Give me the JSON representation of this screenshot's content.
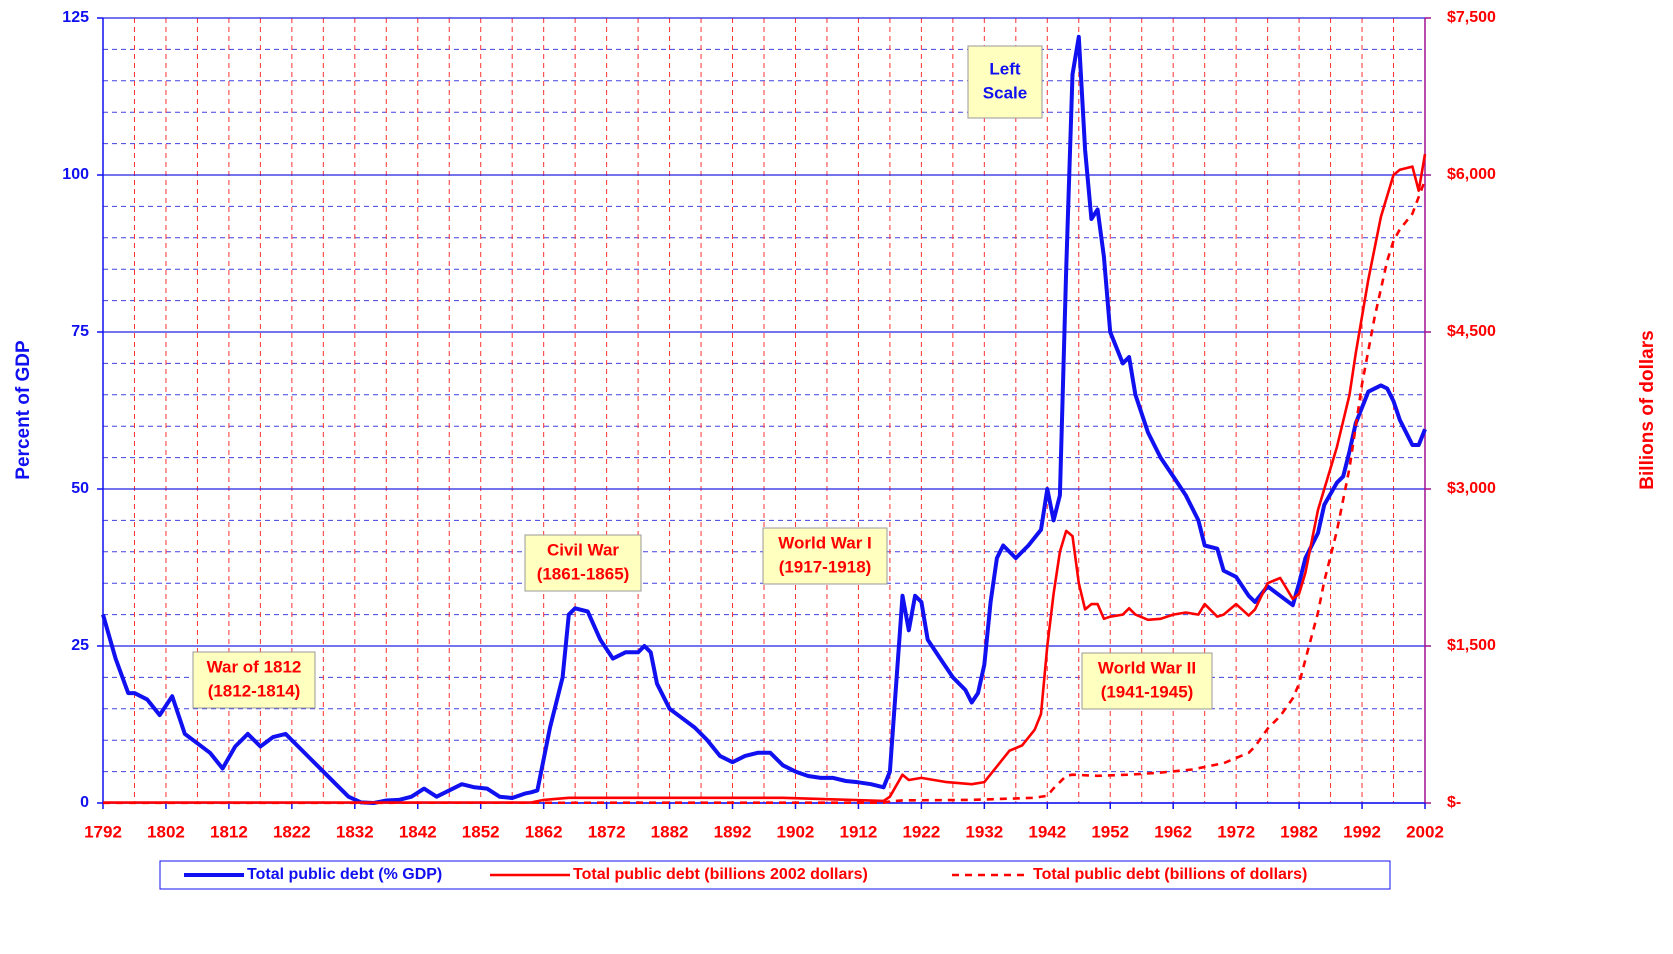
{
  "chart_data": {
    "type": "line",
    "ylabel": "Percent of GDP",
    "y2label": "Billions of dollars",
    "xlim": [
      1792,
      2002
    ],
    "xticks": [
      1792,
      1802,
      1812,
      1822,
      1832,
      1842,
      1852,
      1862,
      1872,
      1882,
      1892,
      1902,
      1912,
      1922,
      1932,
      1942,
      1952,
      1962,
      1972,
      1982,
      1992,
      2002
    ],
    "xminorticks": [
      1797,
      1802,
      1807,
      1812,
      1817,
      1822,
      1827,
      1832,
      1837,
      1842,
      1847,
      1852,
      1857,
      1862,
      1867,
      1872,
      1877,
      1882,
      1887,
      1892,
      1897,
      1902,
      1907,
      1912,
      1917,
      1922,
      1927,
      1932,
      1937,
      1942,
      1947,
      1952,
      1957,
      1962,
      1967,
      1972,
      1977,
      1982,
      1987,
      1992,
      1997
    ],
    "ylim": [
      0,
      125
    ],
    "yticks": [
      0,
      25,
      50,
      75,
      100,
      125
    ],
    "yminorticks": [
      5,
      10,
      15,
      20,
      30,
      35,
      40,
      45,
      55,
      60,
      65,
      70,
      80,
      85,
      90,
      95,
      105,
      110,
      115,
      120
    ],
    "y2lim": [
      0,
      7500
    ],
    "y2ticks": [
      {
        "value": 0,
        "label": "$-"
      },
      {
        "value": 1500,
        "label": "$1,500"
      },
      {
        "value": 3000,
        "label": "$3,000"
      },
      {
        "value": 4500,
        "label": "$4,500"
      },
      {
        "value": 6000,
        "label": "$6,000"
      },
      {
        "value": 7500,
        "label": "$7,500"
      }
    ],
    "grid": true,
    "legend": "bottom",
    "series": [
      {
        "name": "Total public debt (% GDP)",
        "color": "#1010f0",
        "dash": false,
        "x": [
          1792,
          1794,
          1796,
          1797,
          1799,
          1801,
          1803,
          1805,
          1807,
          1809,
          1811,
          1813,
          1815,
          1817,
          1819,
          1821,
          1823,
          1825,
          1827,
          1829,
          1831,
          1833,
          1835,
          1837,
          1839,
          1841,
          1843,
          1845,
          1847,
          1849,
          1851,
          1853,
          1855,
          1857,
          1859,
          1860,
          1861,
          1863,
          1865,
          1866,
          1867,
          1869,
          1871,
          1873,
          1875,
          1877,
          1878,
          1879,
          1880,
          1882,
          1884,
          1886,
          1888,
          1890,
          1892,
          1894,
          1896,
          1898,
          1900,
          1902,
          1904,
          1906,
          1908,
          1910,
          1912,
          1914,
          1916,
          1917,
          1919,
          1920,
          1921,
          1922,
          1923,
          1925,
          1927,
          1929,
          1930,
          1931,
          1932,
          1933,
          1934,
          1935,
          1937,
          1939,
          1941,
          1942,
          1943,
          1944,
          1945,
          1946,
          1947,
          1948,
          1949,
          1950,
          1951,
          1952,
          1954,
          1955,
          1956,
          1958,
          1960,
          1962,
          1964,
          1966,
          1967,
          1969,
          1970,
          1972,
          1974,
          1975,
          1977,
          1979,
          1981,
          1982,
          1983,
          1985,
          1986,
          1988,
          1989,
          1990,
          1991,
          1993,
          1995,
          1996,
          1997,
          1998,
          2000,
          2001,
          2002
        ],
        "values": [
          30,
          23,
          17.5,
          17.5,
          16.5,
          14,
          17,
          11,
          9.5,
          8,
          5.5,
          9,
          11,
          9,
          10.5,
          11,
          9,
          7,
          5,
          3,
          1,
          0.1,
          0,
          0.4,
          0.5,
          1,
          2.3,
          1,
          2,
          3,
          2.5,
          2.3,
          1,
          0.8,
          1.5,
          1.7,
          2,
          12,
          20,
          30,
          31,
          30.5,
          26,
          23,
          24,
          24,
          25,
          24,
          19,
          15,
          13.5,
          12,
          10,
          7.5,
          6.5,
          7.5,
          8,
          8,
          6,
          5,
          4.3,
          4,
          4,
          3.5,
          3.3,
          3,
          2.5,
          5,
          33,
          27.5,
          33,
          32,
          26,
          23,
          20,
          18,
          16,
          17.5,
          22,
          32,
          39,
          41,
          39,
          41,
          43.5,
          50,
          45,
          49,
          85,
          116,
          122,
          104,
          93,
          94.5,
          87,
          75,
          70,
          71,
          65,
          59,
          55,
          52,
          49,
          45,
          41,
          40.5,
          37,
          36,
          33,
          32,
          34.5,
          33,
          31.5,
          35,
          39,
          43,
          47.5,
          51,
          52,
          56,
          60.5,
          65.5,
          66.5,
          66,
          64,
          61,
          57,
          57,
          59.5
        ]
      },
      {
        "name": "Total public debt (billions 2002 dollars)",
        "color": "#ff0000",
        "axis": "y2",
        "dash": false,
        "x": [
          1792,
          1860,
          1862,
          1866,
          1900,
          1916,
          1917,
          1919,
          1920,
          1922,
          1926,
          1930,
          1932,
          1934,
          1936,
          1938,
          1940,
          1941,
          1942,
          1943,
          1944,
          1945,
          1946,
          1947,
          1948,
          1949,
          1950,
          1951,
          1952,
          1954,
          1955,
          1956,
          1958,
          1960,
          1962,
          1964,
          1966,
          1967,
          1969,
          1970,
          1972,
          1974,
          1975,
          1977,
          1979,
          1981,
          1982,
          1983,
          1985,
          1986,
          1988,
          1989,
          1990,
          1991,
          1993,
          1995,
          1996,
          1997,
          1998,
          2000,
          2001,
          2002
        ],
        "values": [
          5,
          5,
          30,
          50,
          50,
          20,
          60,
          270,
          220,
          240,
          200,
          180,
          200,
          350,
          500,
          550,
          700,
          850,
          1500,
          2000,
          2400,
          2600,
          2550,
          2100,
          1850,
          1900,
          1900,
          1760,
          1780,
          1800,
          1860,
          1800,
          1750,
          1760,
          1800,
          1820,
          1800,
          1900,
          1780,
          1800,
          1900,
          1790,
          1850,
          2100,
          2150,
          1950,
          2000,
          2200,
          2800,
          3000,
          3400,
          3650,
          3900,
          4300,
          5000,
          5600,
          5800,
          6000,
          6050,
          6080,
          5850,
          6200
        ]
      },
      {
        "name": "Total public debt (billions of dollars)",
        "color": "#ff0000",
        "axis": "y2",
        "dash": true,
        "x": [
          1792,
          1916,
          1917,
          1919,
          1930,
          1940,
          1942,
          1943,
          1944,
          1945,
          1946,
          1950,
          1955,
          1960,
          1965,
          1970,
          1972,
          1974,
          1975,
          1977,
          1979,
          1981,
          1982,
          1983,
          1985,
          1986,
          1988,
          1990,
          1992,
          1994,
          1996,
          1997,
          1998,
          2000,
          2002
        ],
        "values": [
          2,
          3,
          15,
          25,
          30,
          50,
          70,
          140,
          200,
          260,
          270,
          260,
          270,
          290,
          320,
          380,
          430,
          480,
          540,
          710,
          830,
          1000,
          1140,
          1370,
          1820,
          2120,
          2600,
          3200,
          4000,
          4640,
          5180,
          5370,
          5480,
          5630,
          5950
        ]
      }
    ],
    "annotations": [
      {
        "lines": [
          "Left",
          "Scale"
        ],
        "color": "#1010f0"
      },
      {
        "lines": [
          "War of 1812",
          "(1812-1814)"
        ],
        "color": "#ff0000"
      },
      {
        "lines": [
          "Civil War",
          "(1861-1865)"
        ],
        "color": "#ff0000"
      },
      {
        "lines": [
          "World War I",
          "(1917-1918)"
        ],
        "color": "#ff0000"
      },
      {
        "lines": [
          "World War II",
          "(1941-1945)"
        ],
        "color": "#ff0000"
      }
    ]
  }
}
